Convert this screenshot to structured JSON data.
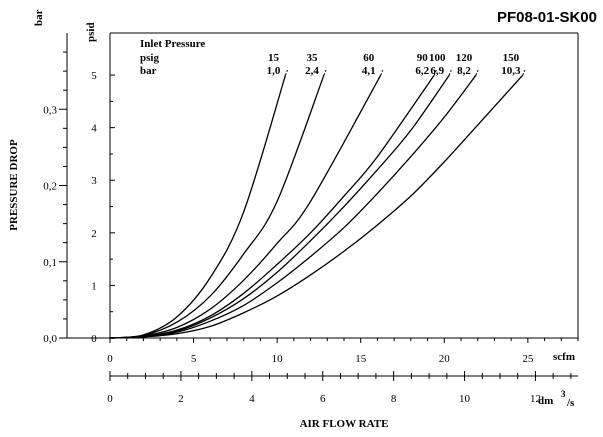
{
  "chart_data": {
    "type": "line",
    "code": "PF08-01-SK00",
    "legend": {
      "title": "Inlet Pressure",
      "psig_label": "psig",
      "bar_label": "bar"
    },
    "y_primary": {
      "unit": "psid",
      "range": [
        0,
        5.8
      ],
      "ticks": [
        0,
        1,
        2,
        3,
        4,
        5
      ],
      "tick_labels": [
        "0",
        "1",
        "2",
        "3",
        "4",
        "5"
      ]
    },
    "y_secondary": {
      "unit": "bar",
      "label": "PRESSURE DROP",
      "range": [
        0,
        0.4
      ],
      "ticks": [
        0.0,
        0.1,
        0.2,
        0.3
      ],
      "tick_labels": [
        "0,0",
        "0,1",
        "0,2",
        "0,3"
      ]
    },
    "x_primary": {
      "unit": "scfm",
      "range": [
        0,
        28
      ],
      "ticks": [
        0,
        5,
        10,
        15,
        20,
        25
      ],
      "tick_labels": [
        "0",
        "5",
        "10",
        "15",
        "20",
        "25"
      ]
    },
    "x_secondary": {
      "unit": "dm",
      "unit_sup": "3",
      "unit_suffix": "/s",
      "range": [
        0,
        13.2
      ],
      "ticks": [
        0,
        2,
        4,
        6,
        8,
        10,
        12
      ],
      "tick_labels": [
        "0",
        "2",
        "4",
        "6",
        "8",
        "10",
        "12"
      ]
    },
    "xlabel": "AIR FLOW RATE",
    "series": [
      {
        "psig": "15",
        "bar": "1,0",
        "points": [
          [
            0,
            0
          ],
          [
            2,
            0.06
          ],
          [
            4,
            0.4
          ],
          [
            6,
            1.15
          ],
          [
            8,
            2.4
          ],
          [
            10.5,
            5.0
          ]
        ]
      },
      {
        "psig": "35",
        "bar": "2,4",
        "points": [
          [
            0,
            0
          ],
          [
            2,
            0.05
          ],
          [
            4,
            0.3
          ],
          [
            6,
            0.8
          ],
          [
            8,
            1.6
          ],
          [
            10,
            2.6
          ],
          [
            12.8,
            5.0
          ]
        ]
      },
      {
        "psig": "60",
        "bar": "4,1",
        "points": [
          [
            0,
            0
          ],
          [
            2,
            0.04
          ],
          [
            4,
            0.2
          ],
          [
            6,
            0.55
          ],
          [
            8,
            1.1
          ],
          [
            10,
            1.8
          ],
          [
            12,
            2.6
          ],
          [
            16.2,
            5.0
          ]
        ]
      },
      {
        "psig": "90",
        "bar": "6,2",
        "points": [
          [
            0,
            0
          ],
          [
            2,
            0.03
          ],
          [
            4,
            0.15
          ],
          [
            6,
            0.42
          ],
          [
            8,
            0.85
          ],
          [
            10,
            1.4
          ],
          [
            12,
            2.0
          ],
          [
            14,
            2.7
          ],
          [
            16,
            3.45
          ],
          [
            19.4,
            5.0
          ]
        ]
      },
      {
        "psig": "100",
        "bar": "6,9",
        "points": [
          [
            0,
            0
          ],
          [
            2,
            0.03
          ],
          [
            4,
            0.13
          ],
          [
            6,
            0.38
          ],
          [
            8,
            0.75
          ],
          [
            10,
            1.25
          ],
          [
            12,
            1.85
          ],
          [
            14,
            2.5
          ],
          [
            16,
            3.2
          ],
          [
            18,
            3.95
          ],
          [
            20.3,
            5.0
          ]
        ]
      },
      {
        "psig": "120",
        "bar": "8,2",
        "points": [
          [
            0,
            0
          ],
          [
            2,
            0.025
          ],
          [
            4,
            0.11
          ],
          [
            6,
            0.32
          ],
          [
            8,
            0.62
          ],
          [
            10,
            1.05
          ],
          [
            12,
            1.55
          ],
          [
            14,
            2.1
          ],
          [
            16,
            2.75
          ],
          [
            18,
            3.45
          ],
          [
            20,
            4.2
          ],
          [
            21.9,
            5.0
          ]
        ]
      },
      {
        "psig": "150",
        "bar": "10,3",
        "points": [
          [
            0,
            0
          ],
          [
            2,
            0.02
          ],
          [
            4,
            0.08
          ],
          [
            6,
            0.22
          ],
          [
            8,
            0.48
          ],
          [
            10,
            0.8
          ],
          [
            12,
            1.2
          ],
          [
            14,
            1.65
          ],
          [
            16,
            2.15
          ],
          [
            18,
            2.7
          ],
          [
            20,
            3.35
          ],
          [
            22,
            4.05
          ],
          [
            24.7,
            5.0
          ]
        ]
      }
    ]
  }
}
